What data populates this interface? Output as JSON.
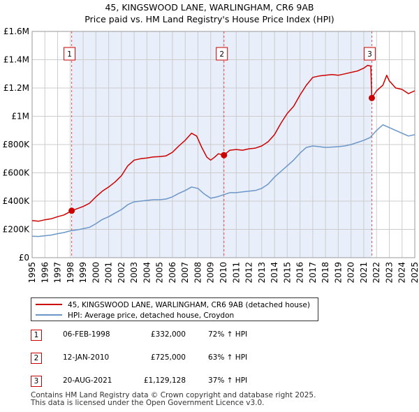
{
  "title_line1": "45, KINGSWOOD LANE, WARLINGHAM, CR6 9AB",
  "title_line2": "Price paid vs. HM Land Registry's House Price Index (HPI)",
  "chart_data": {
    "type": "line",
    "title": "45, KINGSWOOD LANE, WARLINGHAM, CR6 9AB — Price paid vs. HM Land Registry's House Price Index (HPI)",
    "xlabel": "",
    "ylabel": "",
    "xlim": [
      1995,
      2025
    ],
    "ylim": [
      0,
      1600000
    ],
    "y_ticks": [
      0,
      200000,
      400000,
      600000,
      800000,
      1000000,
      1200000,
      1400000,
      1600000
    ],
    "y_tick_labels": [
      "£0",
      "£200K",
      "£400K",
      "£600K",
      "£800K",
      "£1M",
      "£1.2M",
      "£1.4M",
      "£1.6M"
    ],
    "x_ticks": [
      1995,
      1996,
      1997,
      1998,
      1999,
      2000,
      2001,
      2002,
      2003,
      2004,
      2005,
      2006,
      2007,
      2008,
      2009,
      2010,
      2011,
      2012,
      2013,
      2014,
      2015,
      2016,
      2017,
      2018,
      2019,
      2020,
      2021,
      2022,
      2023,
      2024,
      2025
    ],
    "grid": true,
    "series": [
      {
        "name": "45, KINGSWOOD LANE, WARLINGHAM, CR6 9AB (detached house)",
        "color": "#cc0000",
        "x": [
          1995.0,
          1995.5,
          1996.0,
          1996.5,
          1997.0,
          1997.5,
          1998.1,
          1998.5,
          1999.0,
          1999.5,
          2000.0,
          2000.5,
          2001.0,
          2001.5,
          2002.0,
          2002.5,
          2003.0,
          2003.5,
          2004.0,
          2004.5,
          2005.0,
          2005.5,
          2006.0,
          2006.5,
          2007.0,
          2007.5,
          2007.9,
          2008.3,
          2008.7,
          2009.0,
          2009.3,
          2009.6,
          2010.04,
          2010.5,
          2011.0,
          2011.5,
          2012.0,
          2012.5,
          2013.0,
          2013.5,
          2014.0,
          2014.5,
          2015.0,
          2015.5,
          2016.0,
          2016.5,
          2017.0,
          2017.5,
          2018.0,
          2018.5,
          2019.0,
          2019.5,
          2020.0,
          2020.5,
          2021.0,
          2021.3,
          2021.55,
          2021.63,
          2022.0,
          2022.5,
          2022.8,
          2023.0,
          2023.5,
          2024.0,
          2024.5,
          2025.0
        ],
        "values": [
          262000,
          258000,
          268000,
          275000,
          290000,
          302000,
          332000,
          345000,
          362000,
          385000,
          430000,
          470000,
          500000,
          535000,
          580000,
          650000,
          690000,
          700000,
          705000,
          712000,
          715000,
          720000,
          745000,
          790000,
          830000,
          880000,
          860000,
          780000,
          710000,
          690000,
          710000,
          735000,
          725000,
          760000,
          765000,
          760000,
          770000,
          775000,
          790000,
          820000,
          870000,
          950000,
          1020000,
          1070000,
          1150000,
          1220000,
          1275000,
          1285000,
          1290000,
          1295000,
          1290000,
          1300000,
          1310000,
          1320000,
          1340000,
          1360000,
          1355000,
          1129128,
          1180000,
          1220000,
          1290000,
          1250000,
          1200000,
          1190000,
          1160000,
          1180000
        ]
      },
      {
        "name": "HPI: Average price, detached house, Croydon",
        "color": "#6b96c8",
        "x": [
          1995.0,
          1995.5,
          1996.0,
          1996.5,
          1997.0,
          1997.5,
          1998.0,
          1998.5,
          1999.0,
          1999.5,
          2000.0,
          2000.5,
          2001.0,
          2001.5,
          2002.0,
          2002.5,
          2003.0,
          2003.5,
          2004.0,
          2004.5,
          2005.0,
          2005.5,
          2006.0,
          2006.5,
          2007.0,
          2007.5,
          2008.0,
          2008.5,
          2009.0,
          2009.5,
          2010.0,
          2010.5,
          2011.0,
          2011.5,
          2012.0,
          2012.5,
          2013.0,
          2013.5,
          2014.0,
          2014.5,
          2015.0,
          2015.5,
          2016.0,
          2016.5,
          2017.0,
          2017.5,
          2018.0,
          2018.5,
          2019.0,
          2019.5,
          2020.0,
          2020.5,
          2021.0,
          2021.5,
          2022.0,
          2022.5,
          2023.0,
          2023.5,
          2024.0,
          2024.5,
          2025.0
        ],
        "values": [
          152000,
          150000,
          155000,
          160000,
          170000,
          178000,
          190000,
          196000,
          205000,
          215000,
          240000,
          270000,
          290000,
          315000,
          340000,
          375000,
          395000,
          400000,
          405000,
          410000,
          410000,
          415000,
          430000,
          455000,
          475000,
          500000,
          490000,
          450000,
          420000,
          430000,
          445000,
          460000,
          460000,
          465000,
          470000,
          475000,
          490000,
          520000,
          570000,
          610000,
          650000,
          690000,
          740000,
          780000,
          790000,
          785000,
          780000,
          782000,
          785000,
          790000,
          800000,
          815000,
          830000,
          850000,
          900000,
          940000,
          920000,
          900000,
          880000,
          860000,
          870000
        ]
      }
    ],
    "annotations": [
      {
        "label": "1",
        "date": "06-FEB-1998",
        "x": 1998.1,
        "price": 332000,
        "price_label": "£332,000",
        "hpi": "72% ↑ HPI"
      },
      {
        "label": "2",
        "date": "12-JAN-2010",
        "x": 2010.04,
        "price": 725000,
        "price_label": "£725,000",
        "hpi": "63% ↑ HPI"
      },
      {
        "label": "3",
        "date": "20-AUG-2021",
        "x": 2021.63,
        "price": 1129128,
        "price_label": "£1,129,128",
        "hpi": "37% ↑ HPI"
      }
    ],
    "legend_position": "below"
  },
  "legend": {
    "red_label": "45, KINGSWOOD LANE, WARLINGHAM, CR6 9AB (detached house)",
    "blue_label": "HPI: Average price, detached house, Croydon"
  },
  "colors": {
    "red": "#cc0000",
    "blue": "#6b96c8",
    "shade": "#e8eefa",
    "grid": "#cccccc",
    "vline": "#e05050"
  },
  "footer_line1": "Contains HM Land Registry data © Crown copyright and database right 2025.",
  "footer_line2": "This data is licensed under the Open Government Licence v3.0."
}
